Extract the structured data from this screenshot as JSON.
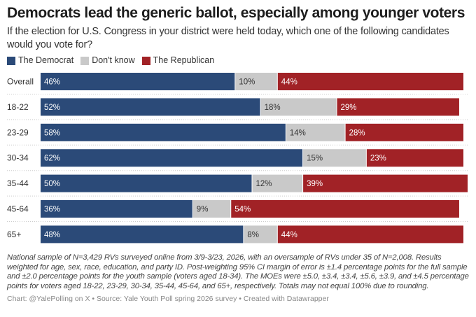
{
  "title": "Democrats lead the generic ballot, especially among younger voters",
  "subtitle": "If the election for U.S. Congress in your district were held today, which one of the following candidates would you vote for?",
  "notes": "National sample of N=3,429 RVs surveyed online from 3/9-3/23, 2026, with an oversample of RVs under 35 of N=2,008. Results weighted for age, sex, race, education, and party ID. Post-weighting 95% CI margin of error is ±1.4 percentage points for the full sample and ±2.0 percentage points for the youth sample (voters aged 18-34). The MOEs were ±5.0, ±3.4, ±3.4, ±5.6, ±3.9, and ±4.5 percentage points for voters aged 18-22, 23-29, 30-34, 35-44, 45-64, and 65+, respectively. Totals may not equal 100% due to rounding.",
  "credit": "Chart: @YalePolling on X • Source: Yale Youth Poll spring 2026 survey • Created with Datawrapper",
  "chart_data": {
    "type": "bar",
    "stacked": true,
    "orientation": "horizontal",
    "categories": [
      "Overall",
      "18-22",
      "23-29",
      "30-34",
      "35-44",
      "45-64",
      "65+"
    ],
    "series": [
      {
        "name": "The Democrat",
        "color": "#2b4a78",
        "values": [
          46,
          52,
          58,
          62,
          50,
          36,
          48
        ]
      },
      {
        "name": "Don't know",
        "color": "#c9c9c9",
        "values": [
          10,
          18,
          14,
          15,
          12,
          9,
          8
        ]
      },
      {
        "name": "The Republican",
        "color": "#a12226",
        "values": [
          44,
          29,
          28,
          23,
          39,
          54,
          44
        ]
      }
    ],
    "unit": "%",
    "legend": "top-left",
    "grid": false
  }
}
